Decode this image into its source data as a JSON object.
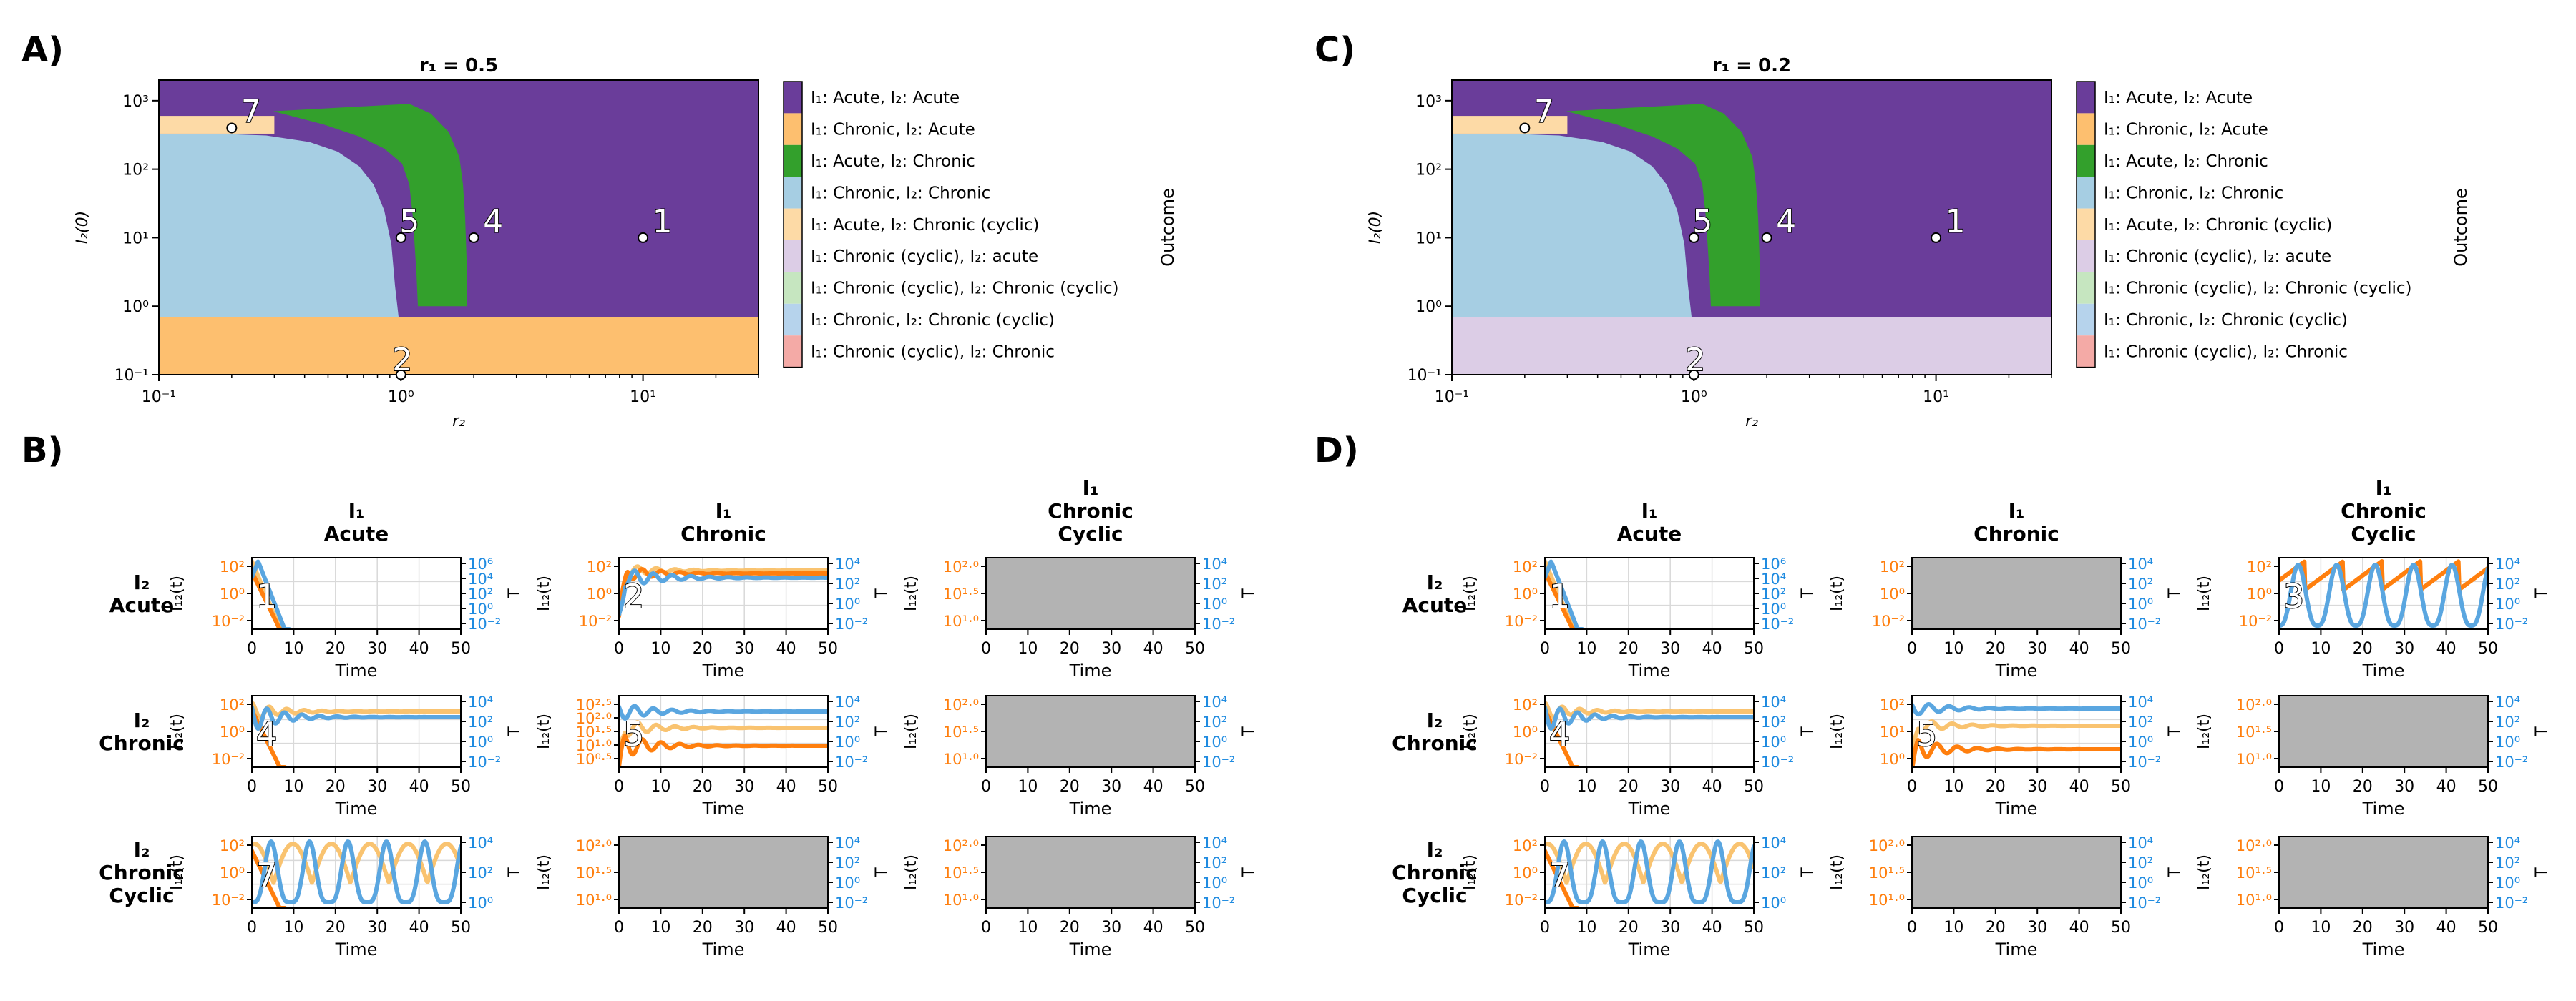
{
  "colors": {
    "acute_acute": "#6a3d9a",
    "chronic_acute": "#fdbf6f",
    "acute_chronic": "#33a02c",
    "chronic_chronic": "#a6cee3",
    "acute_chroniccyclic": "#fddaa6",
    "chroniccyclic_acute": "#dccde6",
    "chroniccyclic_chroniccyclic": "#c6e6c0",
    "chronic_chroniccyclic": "#b6d3ec",
    "chroniccyclic_chronic": "#f4aaa6",
    "i12_strain1": "#ff7f0e",
    "i12_strain2": "#f9c370",
    "tcell": "#5aa6e0",
    "tcell_label": "#1f8be0",
    "i12_label": "#ff7f0e",
    "empty_panel": "#b3b3b3"
  },
  "legend": {
    "title": "Outcome",
    "entries": [
      {
        "label": "I₁: Acute, I₂: Acute",
        "color_key": "acute_acute"
      },
      {
        "label": "I₁: Chronic, I₂: Acute",
        "color_key": "chronic_acute"
      },
      {
        "label": "I₁: Acute, I₂: Chronic",
        "color_key": "acute_chronic"
      },
      {
        "label": "I₁: Chronic, I₂: Chronic",
        "color_key": "chronic_chronic"
      },
      {
        "label": "I₁: Acute, I₂: Chronic (cyclic)",
        "color_key": "acute_chroniccyclic"
      },
      {
        "label": "I₁: Chronic (cyclic), I₂: acute",
        "color_key": "chroniccyclic_acute"
      },
      {
        "label": "I₁: Chronic (cyclic), I₂: Chronic (cyclic)",
        "color_key": "chroniccyclic_chroniccyclic"
      },
      {
        "label": "I₁: Chronic, I₂: Chronic (cyclic)",
        "color_key": "chronic_chroniccyclic"
      },
      {
        "label": "I₁: Chronic (cyclic), I₂: Chronic",
        "color_key": "chroniccyclic_chronic"
      }
    ]
  },
  "chart_data": [
    {
      "panel": "A)",
      "type": "heatmap",
      "title": "r₁ = 0.5",
      "xlabel": "r₂",
      "ylabel": "I₂(0)",
      "xscale": "log",
      "yscale": "log",
      "xlim": [
        0.1,
        30
      ],
      "ylim": [
        0.1,
        2000
      ],
      "xticks": [
        {
          "v": 0.1,
          "label": "10⁻¹"
        },
        {
          "v": 1,
          "label": "10⁰"
        },
        {
          "v": 10,
          "label": "10¹"
        }
      ],
      "yticks": [
        {
          "v": 0.1,
          "label": "10⁻¹"
        },
        {
          "v": 1,
          "label": "10⁰"
        },
        {
          "v": 10,
          "label": "10¹"
        },
        {
          "v": 100,
          "label": "10²"
        },
        {
          "v": 1000,
          "label": "10³"
        }
      ],
      "bottom_region": "chronic_acute",
      "points": [
        {
          "id": "1",
          "x": 10,
          "y": 10
        },
        {
          "id": "2",
          "x": 1,
          "y": 0.1
        },
        {
          "id": "4",
          "x": 2,
          "y": 10
        },
        {
          "id": "5",
          "x": 1,
          "y": 10
        },
        {
          "id": "7",
          "x": 0.2,
          "y": 400
        }
      ]
    },
    {
      "panel": "C)",
      "type": "heatmap",
      "title": "r₁ = 0.2",
      "xlabel": "r₂",
      "ylabel": "I₂(0)",
      "xscale": "log",
      "yscale": "log",
      "xlim": [
        0.1,
        30
      ],
      "ylim": [
        0.1,
        2000
      ],
      "xticks": [
        {
          "v": 0.1,
          "label": "10⁻¹"
        },
        {
          "v": 1,
          "label": "10⁰"
        },
        {
          "v": 10,
          "label": "10¹"
        }
      ],
      "yticks": [
        {
          "v": 0.1,
          "label": "10⁻¹"
        },
        {
          "v": 1,
          "label": "10⁰"
        },
        {
          "v": 10,
          "label": "10¹"
        },
        {
          "v": 100,
          "label": "10²"
        },
        {
          "v": 1000,
          "label": "10³"
        }
      ],
      "bottom_region": "chroniccyclic_acute",
      "points": [
        {
          "id": "1",
          "x": 10,
          "y": 10
        },
        {
          "id": "2",
          "x": 1,
          "y": 0.1
        },
        {
          "id": "4",
          "x": 2,
          "y": 10
        },
        {
          "id": "5",
          "x": 1,
          "y": 10
        },
        {
          "id": "7",
          "x": 0.2,
          "y": 400
        }
      ]
    }
  ],
  "grids": [
    {
      "panel": "B)",
      "col_headers": [
        [
          "I₁",
          "Acute"
        ],
        [
          "I₁",
          "Chronic"
        ],
        [
          "I₁",
          "Chronic",
          "Cyclic"
        ]
      ],
      "row_headers": [
        [
          "I₂",
          "Acute"
        ],
        [
          "I₂",
          "Chronic"
        ],
        [
          "I₂",
          "Chronic",
          "Cyclic"
        ]
      ],
      "xlabel": "Time",
      "ylabel_left": "I₁₂(t)",
      "ylabel_right": "T",
      "xticks": [
        "0",
        "10",
        "20",
        "30",
        "40",
        "50"
      ],
      "cells": [
        {
          "empty": false,
          "num": "1",
          "kind": "acute",
          "left": [
            "10²",
            "10⁰",
            "10⁻²"
          ],
          "right": [
            "10⁶",
            "10⁴",
            "10²",
            "10⁰",
            "10⁻²"
          ]
        },
        {
          "empty": false,
          "num": "2",
          "kind": "chronic",
          "left": [
            "10²",
            "10⁰",
            "10⁻²"
          ],
          "right": [
            "10⁴",
            "10²",
            "10⁰",
            "10⁻²"
          ]
        },
        {
          "empty": true,
          "left": [
            "10²·⁰",
            "10¹·⁵",
            "10¹·⁰"
          ],
          "right": [
            "10⁴",
            "10²",
            "10⁰",
            "10⁻²"
          ]
        },
        {
          "empty": false,
          "num": "4",
          "kind": "acute_chronic",
          "left": [
            "10²",
            "10⁰",
            "10⁻²"
          ],
          "right": [
            "10⁴",
            "10²",
            "10⁰",
            "10⁻²"
          ]
        },
        {
          "empty": false,
          "num": "5",
          "kind": "chronic_chronic",
          "left": [
            "10²·⁵",
            "10²·⁰",
            "10¹·⁵",
            "10¹·⁰",
            "10⁰·⁵"
          ],
          "right": [
            "10⁴",
            "10²",
            "10⁰",
            "10⁻²"
          ]
        },
        {
          "empty": true,
          "left": [
            "10²·⁰",
            "10¹·⁵",
            "10¹·⁰"
          ],
          "right": [
            "10⁴",
            "10²",
            "10⁰",
            "10⁻²"
          ]
        },
        {
          "empty": false,
          "num": "7",
          "kind": "cyclic_acute",
          "left": [
            "10²",
            "10⁰",
            "10⁻²"
          ],
          "right": [
            "10⁴",
            "10²",
            "10⁰"
          ]
        },
        {
          "empty": true,
          "left": [
            "10²·⁰",
            "10¹·⁵",
            "10¹·⁰"
          ],
          "right": [
            "10⁴",
            "10²",
            "10⁰",
            "10⁻²"
          ]
        },
        {
          "empty": true,
          "left": [
            "10²·⁰",
            "10¹·⁵",
            "10¹·⁰"
          ],
          "right": [
            "10⁴",
            "10²",
            "10⁰",
            "10⁻²"
          ]
        }
      ]
    },
    {
      "panel": "D)",
      "col_headers": [
        [
          "I₁",
          "Acute"
        ],
        [
          "I₁",
          "Chronic"
        ],
        [
          "I₁",
          "Chronic",
          "Cyclic"
        ]
      ],
      "row_headers": [
        [
          "I₂",
          "Acute"
        ],
        [
          "I₂",
          "Chronic"
        ],
        [
          "I₂",
          "Chronic",
          "Cyclic"
        ]
      ],
      "xlabel": "Time",
      "ylabel_left": "I₁₂(t)",
      "ylabel_right": "T",
      "xticks": [
        "0",
        "10",
        "20",
        "30",
        "40",
        "50"
      ],
      "cells": [
        {
          "empty": false,
          "num": "1",
          "kind": "acute",
          "left": [
            "10²",
            "10⁰",
            "10⁻²"
          ],
          "right": [
            "10⁶",
            "10⁴",
            "10²",
            "10⁰",
            "10⁻²"
          ]
        },
        {
          "empty": true,
          "left": [
            "10²",
            "10⁰",
            "10⁻²"
          ],
          "right": [
            "10⁴",
            "10²",
            "10⁰",
            "10⁻²"
          ]
        },
        {
          "empty": false,
          "num": "3",
          "kind": "cyclic_top",
          "left": [
            "10²",
            "10⁰",
            "10⁻²"
          ],
          "right": [
            "10⁴",
            "10²",
            "10⁰",
            "10⁻²"
          ]
        },
        {
          "empty": false,
          "num": "4",
          "kind": "acute_chronic",
          "left": [
            "10²",
            "10⁰",
            "10⁻²"
          ],
          "right": [
            "10⁴",
            "10²",
            "10⁰",
            "10⁻²"
          ]
        },
        {
          "empty": false,
          "num": "5",
          "kind": "chronic_chronic2",
          "left": [
            "10²",
            "10¹",
            "10⁰"
          ],
          "right": [
            "10⁴",
            "10²",
            "10⁰",
            "10⁻²"
          ]
        },
        {
          "empty": true,
          "left": [
            "10²·⁰",
            "10¹·⁵",
            "10¹·⁰"
          ],
          "right": [
            "10⁴",
            "10²",
            "10⁰",
            "10⁻²"
          ]
        },
        {
          "empty": false,
          "num": "7",
          "kind": "cyclic_acute",
          "left": [
            "10²",
            "10⁰",
            "10⁻²"
          ],
          "right": [
            "10⁴",
            "10²",
            "10⁰"
          ]
        },
        {
          "empty": true,
          "left": [
            "10²·⁰",
            "10¹·⁵",
            "10¹·⁰"
          ],
          "right": [
            "10⁴",
            "10²",
            "10⁰",
            "10⁻²"
          ]
        },
        {
          "empty": true,
          "left": [
            "10²·⁰",
            "10¹·⁵",
            "10¹·⁰"
          ],
          "right": [
            "10⁴",
            "10²",
            "10⁰",
            "10⁻²"
          ]
        }
      ]
    }
  ]
}
